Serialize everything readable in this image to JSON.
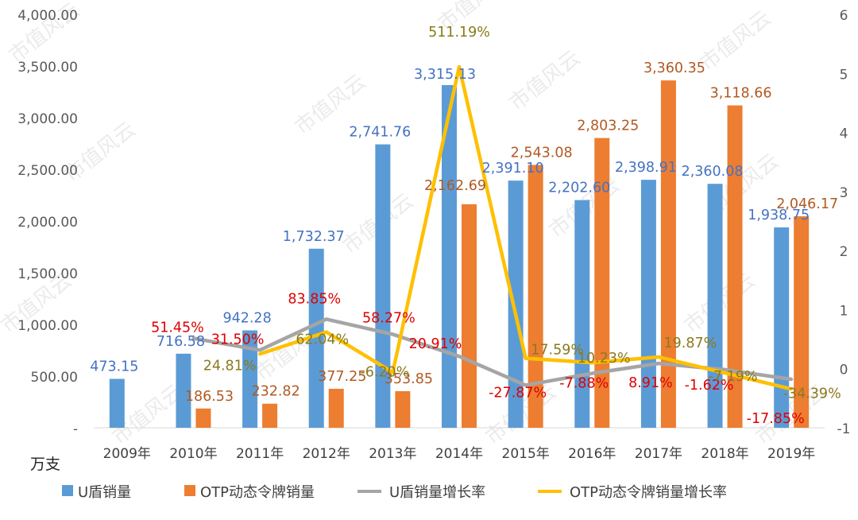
{
  "chart_data": {
    "type": "bar",
    "unit_label": "万支",
    "categories": [
      "2009年",
      "2010年",
      "2011年",
      "2012年",
      "2013年",
      "2014年",
      "2015年",
      "2016年",
      "2017年",
      "2018年",
      "2019年"
    ],
    "ylim": [
      0,
      4000
    ],
    "y_ticks": [
      "-",
      "500.00",
      "1,000.00",
      "1,500.00",
      "2,000.00",
      "2,500.00",
      "3,000.00",
      "3,500.00",
      "4,000.00"
    ],
    "y2lim": [
      -1,
      6
    ],
    "y2_ticks": [
      "-1",
      "0",
      "1",
      "2",
      "3",
      "4",
      "5",
      "6"
    ],
    "series": [
      {
        "name": "U盾销量",
        "kind": "bar",
        "color": "#5b9bd5",
        "label_color": "#4472c4",
        "values": [
          473.15,
          716.58,
          942.28,
          1732.37,
          2741.76,
          3315.13,
          2391.1,
          2202.6,
          2398.91,
          2360.08,
          1938.75
        ],
        "labels": [
          "473.15",
          "716.58",
          "942.28",
          "1,732.37",
          "2,741.76",
          "3,315.13",
          "2,391.10",
          "2,202.60",
          "2,398.91",
          "2,360.08",
          "1,938.75"
        ]
      },
      {
        "name": "OTP动态令牌销量",
        "kind": "bar",
        "color": "#ed7d31",
        "label_color": "#b05a22",
        "values": [
          null,
          186.53,
          232.82,
          377.25,
          353.85,
          2162.69,
          2543.08,
          2803.25,
          3360.35,
          3118.66,
          2046.17
        ],
        "labels": [
          "",
          "186.53",
          "232.82",
          "377.25",
          "353.85",
          "2,162.69",
          "2,543.08",
          "2,803.25",
          "3,360.35",
          "3,118.66",
          "2,046.17"
        ]
      },
      {
        "name": "U盾销量增长率",
        "kind": "line",
        "color": "#a5a5a5",
        "label_color": "#e00000",
        "values": [
          null,
          0.5145,
          0.315,
          0.8385,
          0.5827,
          0.2091,
          -0.2787,
          -0.0788,
          0.0891,
          -0.0162,
          -0.1785
        ],
        "labels": [
          "",
          "51.45%",
          "31.50%",
          "83.85%",
          "58.27%",
          "20.91%",
          "-27.87%",
          "-7.88%",
          "8.91%",
          "-1.62%",
          "-17.85%"
        ]
      },
      {
        "name": "OTP动态令牌销量增长率",
        "kind": "line",
        "color": "#ffc000",
        "label_color": "#8a7a1c",
        "values": [
          null,
          null,
          0.2481,
          0.6204,
          -0.062,
          5.1119,
          0.1759,
          0.1023,
          0.1987,
          -0.0719,
          -0.3439
        ],
        "labels": [
          "",
          "",
          "24.81%",
          "62.04%",
          "-6.20%",
          "511.19%",
          "17.59%",
          "10.23%",
          "19.87%",
          "-7.19%",
          "-34.39%"
        ]
      }
    ],
    "legend_position": "bottom"
  },
  "watermark": "市值风云"
}
